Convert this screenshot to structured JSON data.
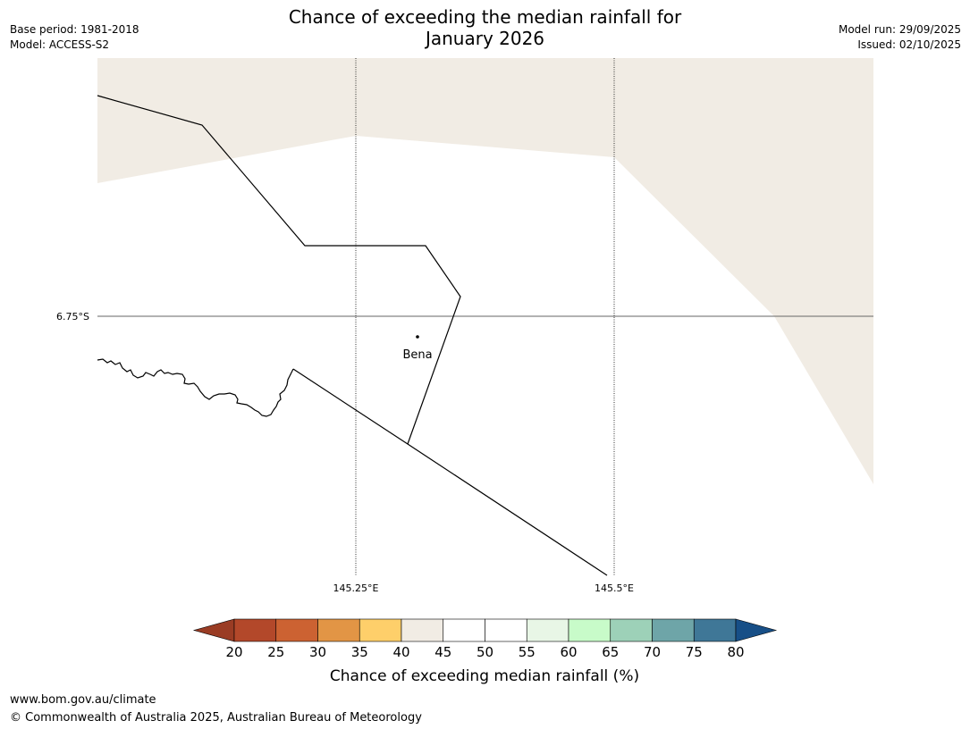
{
  "title": {
    "line1": "Chance of exceeding the median rainfall for",
    "line2": "January 2026"
  },
  "meta": {
    "base_period": "Base period: 1981-2018",
    "model": "Model: ACCESS-S2",
    "model_run": "Model run: 29/09/2025",
    "issued": "Issued: 02/10/2025"
  },
  "map": {
    "latitude_labels": [
      "6.75°S"
    ],
    "longitude_labels": [
      "145.25°E",
      "145.5°E"
    ],
    "places": [
      {
        "name": "Bena"
      }
    ]
  },
  "legend": {
    "title": "Chance of exceeding median rainfall (%)",
    "ticks": [
      "20",
      "25",
      "30",
      "35",
      "40",
      "45",
      "50",
      "55",
      "60",
      "65",
      "70",
      "75",
      "80"
    ],
    "under_color": "#9a3c24",
    "over_color": "#174f87",
    "bins": [
      {
        "from": 20,
        "to": 25,
        "color": "#b3482a"
      },
      {
        "from": 25,
        "to": 30,
        "color": "#cc6232"
      },
      {
        "from": 30,
        "to": 35,
        "color": "#e29545"
      },
      {
        "from": 35,
        "to": 40,
        "color": "#fecf6a"
      },
      {
        "from": 40,
        "to": 45,
        "color": "#f1ece4"
      },
      {
        "from": 45,
        "to": 50,
        "color": "#ffffff"
      },
      {
        "from": 50,
        "to": 55,
        "color": "#ffffff"
      },
      {
        "from": 55,
        "to": 60,
        "color": "#e8f6e6"
      },
      {
        "from": 60,
        "to": 65,
        "color": "#c8fbc9"
      },
      {
        "from": 65,
        "to": 70,
        "color": "#9dd1b8"
      },
      {
        "from": 70,
        "to": 75,
        "color": "#6ea5a8"
      },
      {
        "from": 75,
        "to": 80,
        "color": "#3f7797"
      }
    ]
  },
  "footer": {
    "url": "www.bom.gov.au/climate",
    "copyright": "© Commonwealth of Australia 2025, Australian Bureau of Meteorology"
  }
}
